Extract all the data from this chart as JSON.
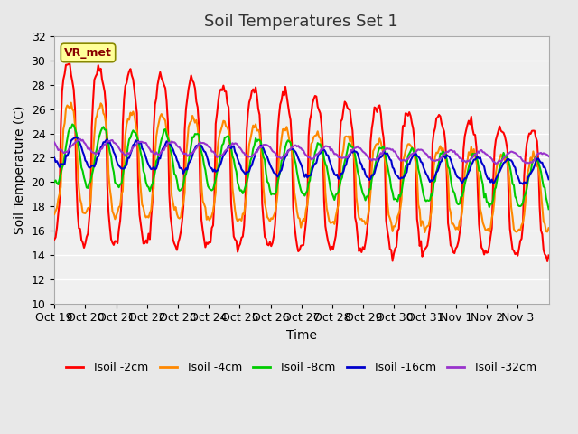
{
  "title": "Soil Temperatures Set 1",
  "xlabel": "Time",
  "ylabel": "Soil Temperature (C)",
  "ylim": [
    10,
    32
  ],
  "yticks": [
    10,
    12,
    14,
    16,
    18,
    20,
    22,
    24,
    26,
    28,
    30,
    32
  ],
  "xtick_positions": [
    0,
    1,
    2,
    3,
    4,
    5,
    6,
    7,
    8,
    9,
    10,
    11,
    12,
    13,
    14,
    15
  ],
  "xtick_labels": [
    "Oct 19",
    "Oct 20",
    "Oct 21",
    "Oct 22",
    "Oct 23",
    "Oct 24",
    "Oct 25",
    "Oct 26",
    "Oct 27",
    "Oct 28",
    "Oct 29",
    "Oct 30",
    "Oct 31",
    "Nov 1",
    "Nov 2",
    "Nov 3"
  ],
  "legend_labels": [
    "Tsoil -2cm",
    "Tsoil -4cm",
    "Tsoil -8cm",
    "Tsoil -16cm",
    "Tsoil -32cm"
  ],
  "line_colors": [
    "#ff0000",
    "#ff8800",
    "#00cc00",
    "#0000cc",
    "#9933cc"
  ],
  "line_widths": [
    1.5,
    1.5,
    1.5,
    1.5,
    1.5
  ],
  "background_color": "#e8e8e8",
  "plot_bg_color": "#f0f0f0",
  "grid_color": "#ffffff",
  "annotation_text": "VR_met",
  "annotation_bg": "#ffff99",
  "annotation_border": "#888800",
  "title_fontsize": 13,
  "label_fontsize": 10,
  "tick_fontsize": 9,
  "n_days": 16,
  "n_per_day": 24
}
